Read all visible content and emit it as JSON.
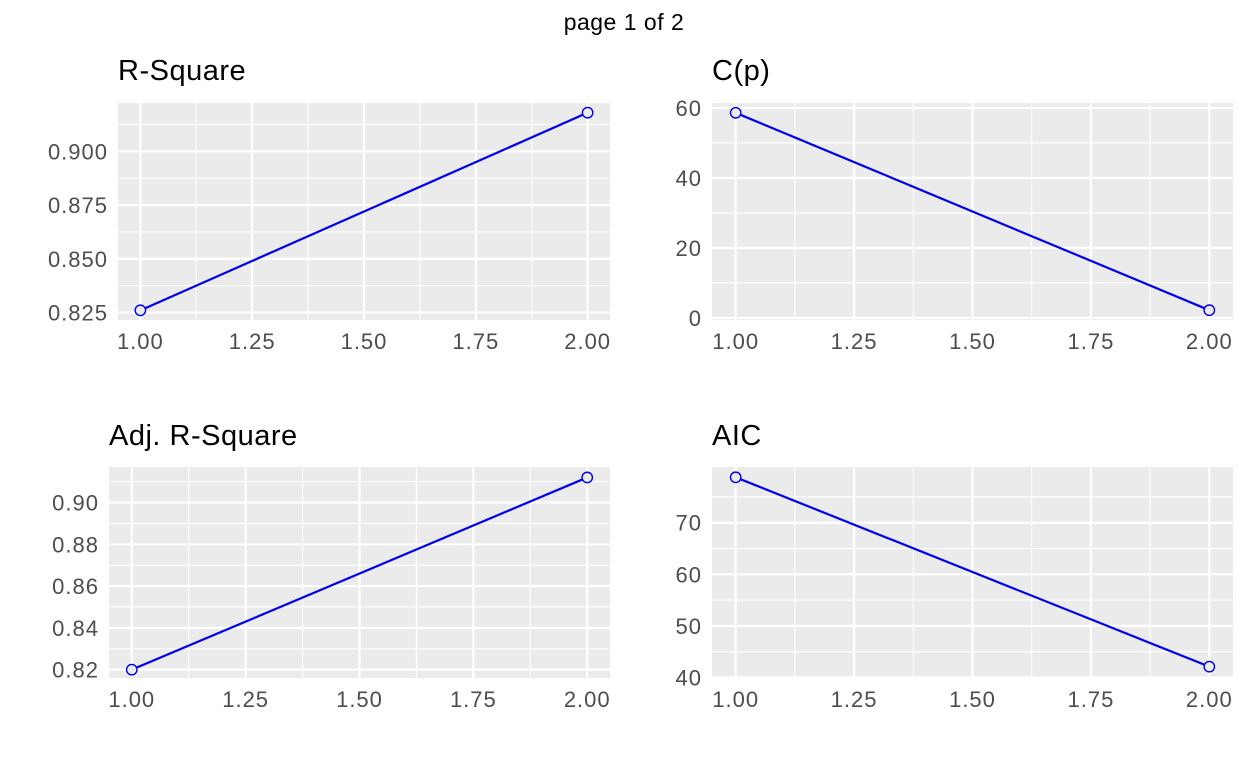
{
  "page_title": "page 1 of 2",
  "colors": {
    "background": "#FFFFFF",
    "panel_background": "#EBEBEB",
    "grid_major": "#FFFFFF",
    "grid_minor": "#FFFFFF",
    "series_line": "#0000EE",
    "tick_label": "#4D4D4D",
    "chart_title": "#000000"
  },
  "chart_data": [
    {
      "id": "r-square",
      "type": "line",
      "title": "R-Square",
      "x": [
        1,
        2
      ],
      "y": [
        0.826,
        0.918
      ],
      "xlim": [
        0.95,
        2.05
      ],
      "ylim": [
        0.8215,
        0.9225
      ],
      "xticks": [
        1.0,
        1.25,
        1.5,
        1.75,
        2.0
      ],
      "xtick_labels": [
        "1.00",
        "1.25",
        "1.50",
        "1.75",
        "2.00"
      ],
      "yticks": [
        0.825,
        0.85,
        0.875,
        0.9
      ],
      "ytick_labels": [
        "0.825",
        "0.850",
        "0.875",
        "0.900"
      ],
      "xminor": [
        1.125,
        1.375,
        1.625,
        1.875
      ],
      "yminor": [
        0.8375,
        0.8625,
        0.8875,
        0.9125
      ],
      "marker": "open-circle",
      "grid": true,
      "legend": "none"
    },
    {
      "id": "cp",
      "type": "line",
      "title": "C(p)",
      "x": [
        1,
        2
      ],
      "y": [
        58.6,
        2.2
      ],
      "xlim": [
        0.95,
        2.05
      ],
      "ylim": [
        -0.6,
        61.4
      ],
      "xticks": [
        1.0,
        1.25,
        1.5,
        1.75,
        2.0
      ],
      "xtick_labels": [
        "1.00",
        "1.25",
        "1.50",
        "1.75",
        "2.00"
      ],
      "yticks": [
        0,
        20,
        40,
        60
      ],
      "ytick_labels": [
        "0",
        "20",
        "40",
        "60"
      ],
      "xminor": [
        1.125,
        1.375,
        1.625,
        1.875
      ],
      "yminor": [
        10,
        30,
        50
      ],
      "marker": "open-circle",
      "grid": true,
      "legend": "none"
    },
    {
      "id": "adj-r-square",
      "type": "line",
      "title": "Adj. R-Square",
      "x": [
        1,
        2
      ],
      "y": [
        0.82,
        0.912
      ],
      "xlim": [
        0.95,
        2.05
      ],
      "ylim": [
        0.816,
        0.917
      ],
      "xticks": [
        1.0,
        1.25,
        1.5,
        1.75,
        2.0
      ],
      "xtick_labels": [
        "1.00",
        "1.25",
        "1.50",
        "1.75",
        "2.00"
      ],
      "yticks": [
        0.82,
        0.84,
        0.86,
        0.88,
        0.9
      ],
      "ytick_labels": [
        "0.82",
        "0.84",
        "0.86",
        "0.88",
        "0.90"
      ],
      "xminor": [
        1.125,
        1.375,
        1.625,
        1.875
      ],
      "yminor": [
        0.83,
        0.85,
        0.87,
        0.89,
        0.91
      ],
      "marker": "open-circle",
      "grid": true,
      "legend": "none"
    },
    {
      "id": "aic",
      "type": "line",
      "title": "AIC",
      "x": [
        1,
        2
      ],
      "y": [
        78.8,
        42.1
      ],
      "xlim": [
        0.95,
        2.05
      ],
      "ylim": [
        39.9,
        80.8
      ],
      "xticks": [
        1.0,
        1.25,
        1.5,
        1.75,
        2.0
      ],
      "xtick_labels": [
        "1.00",
        "1.25",
        "1.50",
        "1.75",
        "2.00"
      ],
      "yticks": [
        40,
        50,
        60,
        70
      ],
      "ytick_labels": [
        "40",
        "50",
        "60",
        "70"
      ],
      "xminor": [
        1.125,
        1.375,
        1.625,
        1.875
      ],
      "yminor": [
        45,
        55,
        65,
        75
      ],
      "marker": "open-circle",
      "grid": true,
      "legend": "none"
    }
  ]
}
